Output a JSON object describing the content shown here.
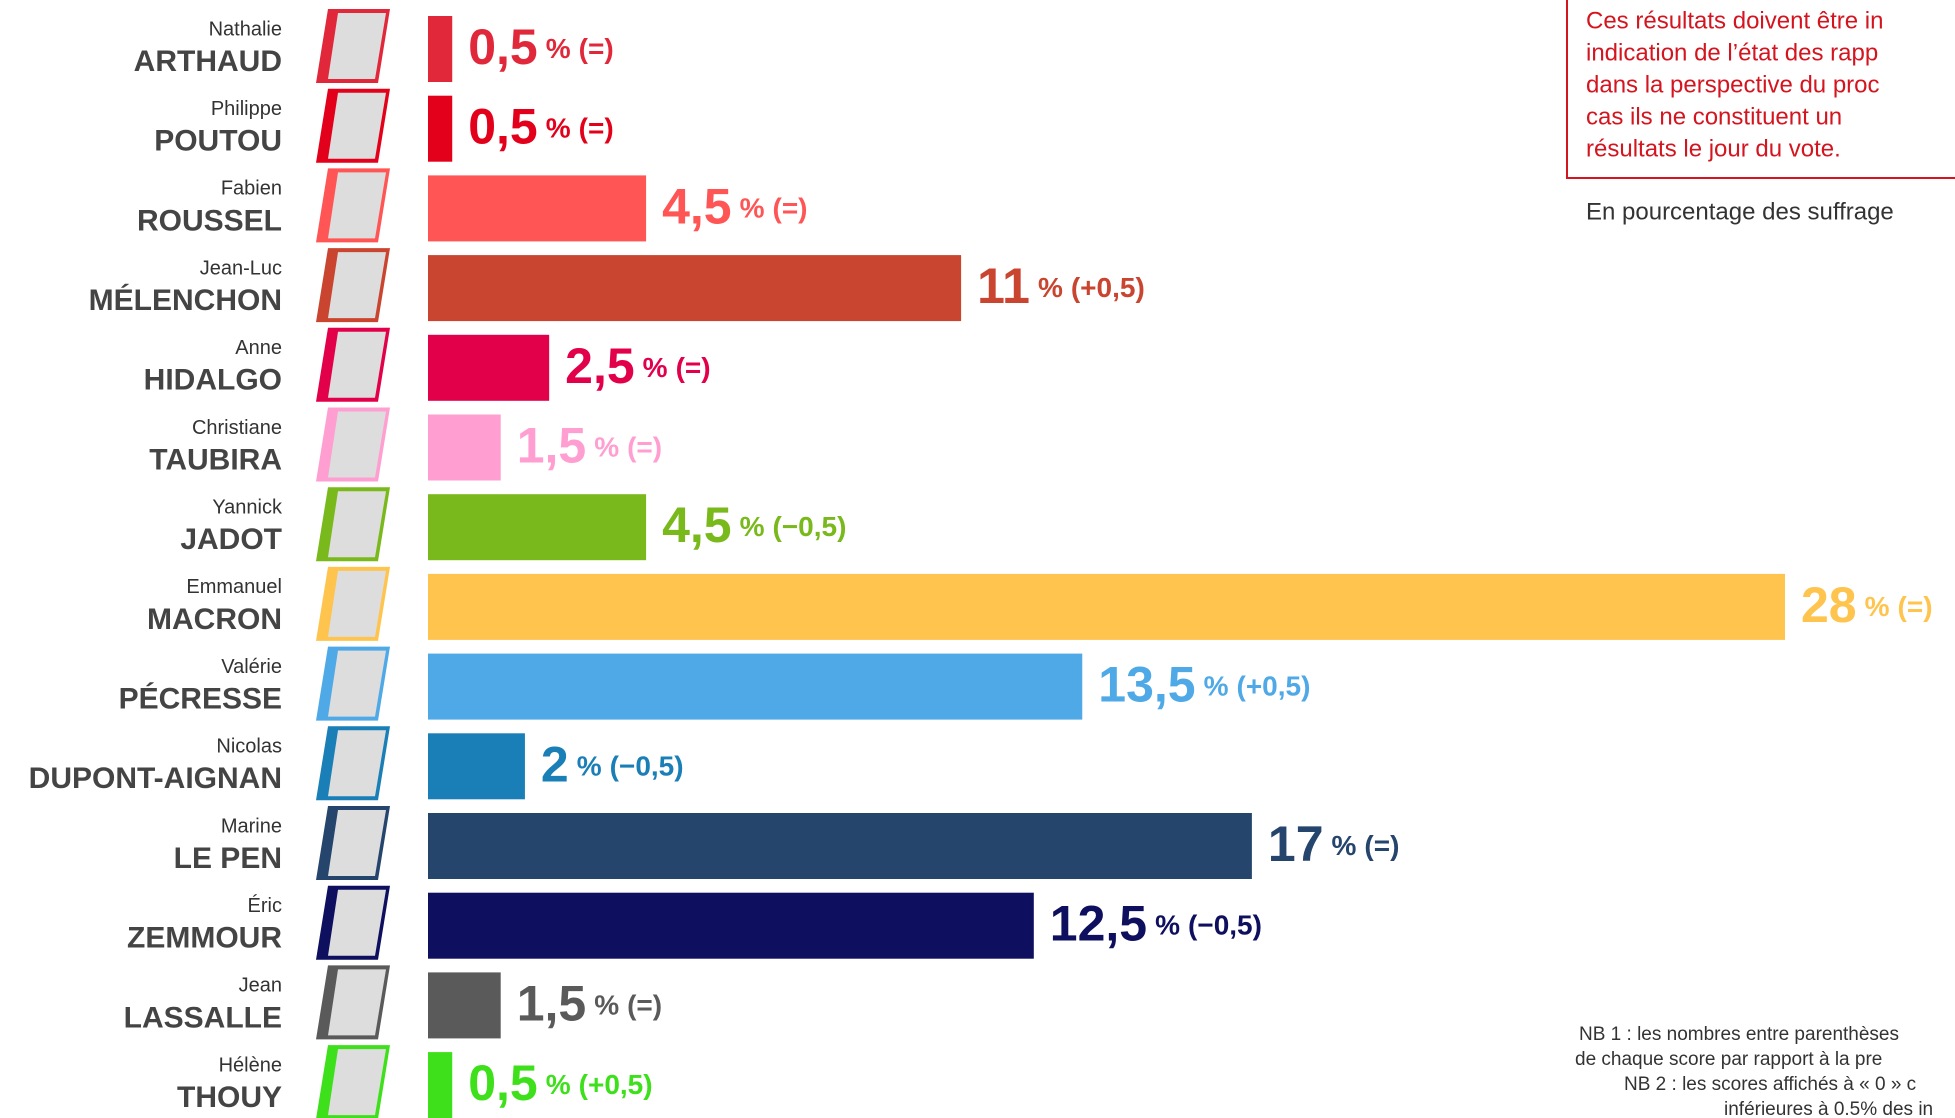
{
  "chart_data": {
    "type": "bar",
    "first_names": [
      "Nathalie",
      "Philippe",
      "Fabien",
      "Jean-Luc",
      "Anne",
      "Christiane",
      "Yannick",
      "Emmanuel",
      "Valérie",
      "Nicolas",
      "Marine",
      "Éric",
      "Jean",
      "Hélène"
    ],
    "categories": [
      "ARTHAUD",
      "POUTOU",
      "ROUSSEL",
      "MÉLENCHON",
      "HIDALGO",
      "TAUBIRA",
      "JADOT",
      "MACRON",
      "PÉCRESSE",
      "DUPONT-AIGNAN",
      "LE PEN",
      "ZEMMOUR",
      "LASSALLE",
      "THOUY"
    ],
    "values": [
      0.5,
      0.5,
      4.5,
      11,
      2.5,
      1.5,
      4.5,
      28,
      13.5,
      2,
      17,
      12.5,
      1.5,
      0.5
    ],
    "value_labels": [
      "0,5",
      "0,5",
      "4,5",
      "11",
      "2,5",
      "1,5",
      "4,5",
      "28",
      "13,5",
      "2",
      "17",
      "12,5",
      "1,5",
      "0,5"
    ],
    "unit": "%",
    "changes": [
      "(=)",
      "(=)",
      "(=)",
      "(+0,5)",
      "(=)",
      "(=)",
      "(−0,5)",
      "(=)",
      "(+0,5)",
      "(−0,5)",
      "(=)",
      "(−0,5)",
      "(=)",
      "(+0,5)"
    ],
    "colors": [
      "#e0283a",
      "#e3001b",
      "#ff5555",
      "#c9452f",
      "#e2004a",
      "#ff9ed0",
      "#7ab91c",
      "#fec44e",
      "#4fa9e6",
      "#1a7fb6",
      "#25456d",
      "#0e0f5e",
      "#5a5a5a",
      "#3de01a"
    ],
    "note": [
      "Ces résultats doivent être in",
      "indication de l’état des rapp",
      "dans la perspective du proc",
      "cas ils ne constituent un",
      "résultats le jour du vote."
    ],
    "subtitle": "En pourcentage des suffrage",
    "footnotes": [
      "NB 1 : les nombres entre parenthèses",
      "de chaque score par rapport à la pre",
      "NB 2 : les scores affichés à « 0 » c",
      "inférieures à 0.5% des in"
    ]
  }
}
